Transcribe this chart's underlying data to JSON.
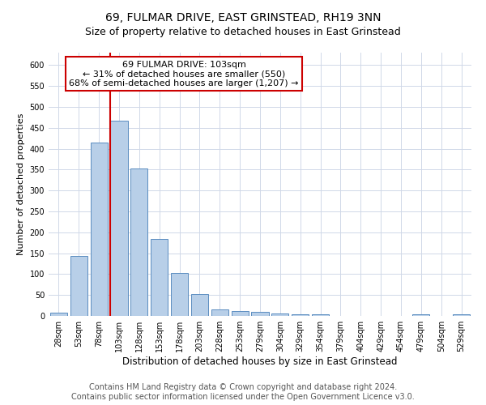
{
  "title": "69, FULMAR DRIVE, EAST GRINSTEAD, RH19 3NN",
  "subtitle": "Size of property relative to detached houses in East Grinstead",
  "xlabel": "Distribution of detached houses by size in East Grinstead",
  "ylabel": "Number of detached properties",
  "all_labels": [
    "28sqm",
    "53sqm",
    "78sqm",
    "103sqm",
    "128sqm",
    "153sqm",
    "178sqm",
    "203sqm",
    "228sqm",
    "253sqm",
    "279sqm",
    "304sqm",
    "329sqm",
    "354sqm",
    "379sqm",
    "404sqm",
    "429sqm",
    "454sqm",
    "479sqm",
    "504sqm",
    "529sqm"
  ],
  "all_values": [
    8,
    143,
    415,
    467,
    353,
    184,
    102,
    53,
    15,
    12,
    9,
    5,
    3,
    3,
    0,
    0,
    0,
    0,
    4,
    0,
    4
  ],
  "bar_color": "#b8cfe8",
  "bar_edge_color": "#5b8dc0",
  "vline_index": 3,
  "vline_color": "#cc0000",
  "annotation_text": "69 FULMAR DRIVE: 103sqm\n← 31% of detached houses are smaller (550)\n68% of semi-detached houses are larger (1,207) →",
  "annotation_box_color": "#ffffff",
  "annotation_box_edge": "#cc0000",
  "ylim_max": 630,
  "yticks": [
    0,
    50,
    100,
    150,
    200,
    250,
    300,
    350,
    400,
    450,
    500,
    550,
    600
  ],
  "background_color": "#ffffff",
  "grid_color": "#d0d8e8",
  "footer_text": "Contains HM Land Registry data © Crown copyright and database right 2024.\nContains public sector information licensed under the Open Government Licence v3.0.",
  "title_fontsize": 10,
  "subtitle_fontsize": 9,
  "xlabel_fontsize": 8.5,
  "ylabel_fontsize": 8,
  "footer_fontsize": 7,
  "annotation_fontsize": 8,
  "tick_fontsize": 7
}
